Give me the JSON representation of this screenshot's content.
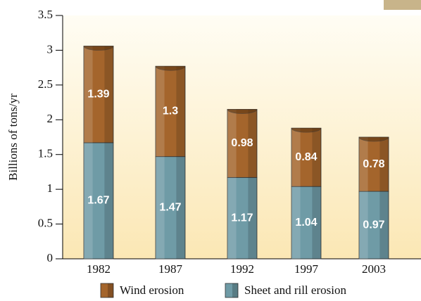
{
  "chart_data": {
    "type": "stacked_bar",
    "y_label": "Billions of tons/yr",
    "categories": [
      "1982",
      "1987",
      "1992",
      "1997",
      "2003"
    ],
    "series": [
      {
        "name": "Wind erosion",
        "color": "#a4652c",
        "values": [
          1.39,
          1.3,
          0.98,
          0.84,
          0.78
        ]
      },
      {
        "name": "Sheet and rill erosion",
        "color": "#6f9ba6",
        "values": [
          1.67,
          1.47,
          1.17,
          1.04,
          0.97
        ]
      }
    ],
    "stack_order": [
      1,
      0
    ],
    "ylim": [
      0,
      3.5
    ],
    "yticks": [
      0,
      0.5,
      1,
      1.5,
      2,
      2.5,
      3,
      3.5
    ]
  }
}
